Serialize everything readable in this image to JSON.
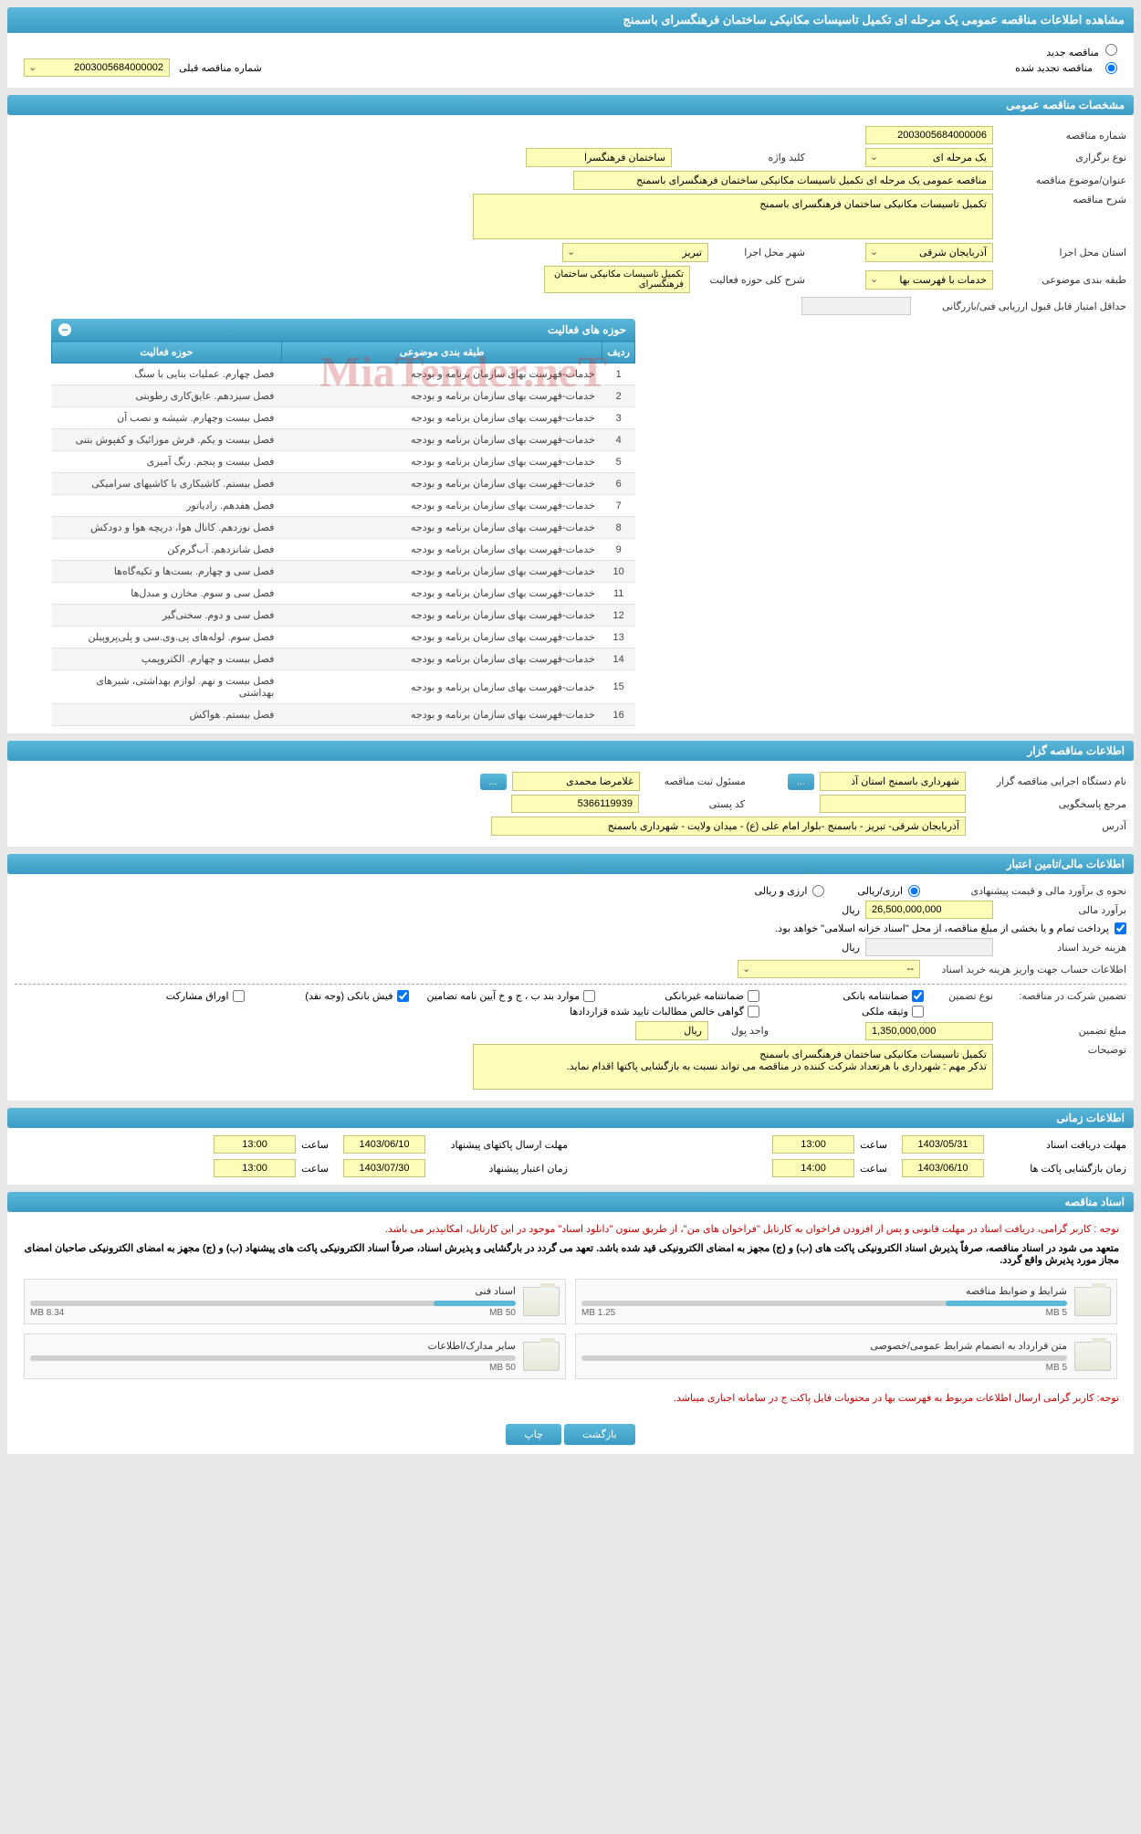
{
  "header": {
    "title": "مشاهده اطلاعات مناقصه عمومی یک مرحله ای تکمیل تاسیسات مکانیکی ساختمان فرهنگسرای باسمنج"
  },
  "top_radios": {
    "new_tender": "مناقصه جدید",
    "renewed_tender": "مناقصه تجدید شده",
    "prev_number_label": "شماره مناقصه قبلی",
    "prev_number": "2003005684000002"
  },
  "general_spec": {
    "section_title": "مشخصات مناقصه عمومی",
    "tender_number_label": "شماره مناقصه",
    "tender_number": "2003005684000006",
    "holding_type_label": "نوع برگزاری",
    "holding_type": "یک مرحله ای",
    "keyword_label": "کلید واژه",
    "keyword": "ساختمان فرهنگسرا",
    "subject_label": "عنوان/موضوع مناقصه",
    "subject": "مناقصه عمومی یک مرحله ای تکمیل تاسیسات مکانیکی ساختمان فرهنگسرای باسمنج",
    "description_label": "شرح مناقصه",
    "description": "تکمیل تاسیسات مکانیکی ساختمان فرهنگسرای باسمنج",
    "province_label": "استان محل اجرا",
    "province": "آذربایجان شرقی",
    "city_label": "شهر محل اجرا",
    "city": "تبریز",
    "category_label": "طبقه بندی موضوعی",
    "category": "خدمات با فهرست بها",
    "activity_scope_label": "شرح کلی حوزه فعالیت",
    "activity_scope": "تکمیل تاسیسات مکانیکی ساختمان فرهنگسرای",
    "min_score_label": "حداقل امتیاز قابل قبول ارزیابی فنی/بازرگانی"
  },
  "activity_table": {
    "title": "حوزه های فعالیت",
    "col_row": "ردیف",
    "col_category": "طبقه بندی موضوعی",
    "col_field": "حوزه فعالیت",
    "rows": [
      {
        "n": "1",
        "cat": "خدمات-فهرست بهای سازمان برنامه و بودجه",
        "field": "فصل چهارم. عملیات بنایی با سنگ"
      },
      {
        "n": "2",
        "cat": "خدمات-فهرست بهای سازمان برنامه و بودجه",
        "field": "فصل سیزدهم. عایق‌کاری رطوبتی"
      },
      {
        "n": "3",
        "cat": "خدمات-فهرست بهای سازمان برنامه و بودجه",
        "field": "فصل بیست وچهارم. شیشه و نصب آن"
      },
      {
        "n": "4",
        "cat": "خدمات-فهرست بهای سازمان برنامه و بودجه",
        "field": "فصل بیست و یکم. فرش موزائیک و کفپوش بتنی"
      },
      {
        "n": "5",
        "cat": "خدمات-فهرست بهای سازمان برنامه و بودجه",
        "field": "فصل بیست و پنجم. رنگ آمیزی"
      },
      {
        "n": "6",
        "cat": "خدمات-فهرست بهای سازمان برنامه و بودجه",
        "field": "فصل بیستم. کاشیکاری با کاشیهای سرامیکی"
      },
      {
        "n": "7",
        "cat": "خدمات-فهرست بهای سازمان برنامه و بودجه",
        "field": "فصل هفدهم. رادیاتور"
      },
      {
        "n": "8",
        "cat": "خدمات-فهرست بهای سازمان برنامه و بودجه",
        "field": "فصل نوزدهم. کانال هوا، دریچه هوا و دودکش"
      },
      {
        "n": "9",
        "cat": "خدمات-فهرست بهای سازمان برنامه و بودجه",
        "field": "فصل شانزدهم. آب‌گرم‌کن"
      },
      {
        "n": "10",
        "cat": "خدمات-فهرست بهای سازمان برنامه و بودجه",
        "field": "فصل سی و چهارم. بست‌ها و تکیه‌گاه‌ها"
      },
      {
        "n": "11",
        "cat": "خدمات-فهرست بهای سازمان برنامه و بودجه",
        "field": "فصل سی و سوم. مخازن و مبدل‌ها"
      },
      {
        "n": "12",
        "cat": "خدمات-فهرست بهای سازمان برنامه و بودجه",
        "field": "فصل سی و دوم. سختی‌گیر"
      },
      {
        "n": "13",
        "cat": "خدمات-فهرست بهای سازمان برنامه و بودجه",
        "field": "فصل سوم. لوله‌های پی.وی.سی و پلی‌پروپیلن"
      },
      {
        "n": "14",
        "cat": "خدمات-فهرست بهای سازمان برنامه و بودجه",
        "field": "فصل بیست و چهارم. الکتروپمپ"
      },
      {
        "n": "15",
        "cat": "خدمات-فهرست بهای سازمان برنامه و بودجه",
        "field": "فصل بیست و نهم. لوازم بهداشتی، شیرهای بهداشتی"
      },
      {
        "n": "16",
        "cat": "خدمات-فهرست بهای سازمان برنامه و بودجه",
        "field": "فصل بیستم. هواکش"
      }
    ]
  },
  "organizer": {
    "section_title": "اطلاعات مناقصه گزار",
    "org_label": "نام دستگاه اجرایی مناقصه گزار",
    "org_name": "شهرداری باسمنج استان آذ",
    "registrar_label": "مسئول ثبت مناقصه",
    "registrar": "غلامرضا محمدی",
    "ref_label": "مرجع پاسخگویی",
    "postal_label": "کد پستی",
    "postal": "5366119939",
    "address_label": "آدرس",
    "address": "آذربایجان شرقی- تبریز - باسمنج -بلوار امام علی (ع) - میدان ولایت - شهرداری باسمنج",
    "btn_more": "..."
  },
  "financial": {
    "section_title": "اطلاعات مالی/تامین اعتبار",
    "estimate_type_label": "نحوه ی برآورد مالی و قیمت پیشنهادی",
    "option_rial": "ارزی/ریالی",
    "option_currency": "ارزی و ریالی",
    "estimate_label": "برآورد مالی",
    "estimate_value": "26,500,000,000",
    "unit_rial": "ریال",
    "payment_note": "پرداخت تمام و یا بخشی از مبلغ مناقصه، از محل \"اسناد خزانه اسلامی\" خواهد بود.",
    "doc_cost_label": "هزینه خرید اسناد",
    "account_info_label": "اطلاعات حساب جهت واریز هزینه خرید اسناد",
    "account_placeholder": "--",
    "guarantee_label": "تضمین شرکت در مناقصه:",
    "guarantee_type_label": "نوع تضمین",
    "chk_bank": "ضمانتنامه بانکی",
    "chk_nonbank": "ضمانتنامه غیربانکی",
    "chk_items": "موارد بند ب ، ج و خ آیین نامه تضامین",
    "chk_cash": "فیش بانکی (وجه نقد)",
    "chk_securities": "اوراق مشارکت",
    "chk_property": "وثیقه ملکی",
    "chk_receivables": "گواهی خالص مطالبات تایید شده قراردادها",
    "guarantee_amount_label": "مبلغ تضمین",
    "guarantee_amount": "1,350,000,000",
    "unit_label": "واحد پول",
    "unit_value": "ریال",
    "notes_label": "توضیحات",
    "notes": "تکمیل تاسیسات مکانیکی ساختمان فرهنگسرای باسمنج\nتذکر مهم : شهرداری با هرتعداد شرکت کننده در مناقصه می تواند نسبت به بازگشایی پاکتها اقدام نماید."
  },
  "timing": {
    "section_title": "اطلاعات زمانی",
    "receive_label": "مهلت دریافت اسناد",
    "receive_date": "1403/05/31",
    "receive_time": "13:00",
    "send_label": "مهلت ارسال پاکتهای پیشنهاد",
    "send_date": "1403/06/10",
    "send_time": "13:00",
    "open_label": "زمان بازگشایی پاکت ها",
    "open_date": "1403/06/10",
    "open_time": "14:00",
    "validity_label": "زمان اعتبار پیشنهاد",
    "validity_date": "1403/07/30",
    "validity_time": "13:00",
    "time_label": "ساعت"
  },
  "documents": {
    "section_title": "اسناد مناقصه",
    "notice1": "توجه : کاربر گرامی، دریافت اسناد در مهلت قانونی و پس از افزودن فراخوان به کارتابل \"فراخوان های من\"، از طریق ستون \"دانلود اسناد\" موجود در این کارتابل، امکانپذیر می باشد.",
    "notice2": "متعهد می شود در اسناد مناقصه، صرفاً پذیرش اسناد الکترونیکی پاکت های (ب) و (ج) مجهز به امضای الکترونیکی قید شده باشد. تعهد می گردد در بارگشایی و پذیرش اسناد، صرفاً اسناد الکترونیکی پاکت های پیشنهاد (ب) و (ج) مجهز به امضای الکترونیکی صاحبان امضای مجاز مورد پذیرش واقع گردد.",
    "docs": [
      {
        "title": "شرایط و ضوابط مناقصه",
        "used": "1.25 MB",
        "total": "5 MB",
        "pct": 25
      },
      {
        "title": "اسناد فنی",
        "used": "8.34 MB",
        "total": "50 MB",
        "pct": 17
      },
      {
        "title": "متن قرارداد به انضمام شرایط عمومی/خصوصی",
        "used": "",
        "total": "5 MB",
        "pct": 0
      },
      {
        "title": "سایر مدارک/اطلاعات",
        "used": "",
        "total": "50 MB",
        "pct": 0
      }
    ],
    "notice3": "توجه: کاربر گرامی ارسال اطلاعات مربوط به فهرست بها در محتویات فایل پاکت ج در سامانه اجباری میباشد."
  },
  "buttons": {
    "back": "بازگشت",
    "print": "چاپ"
  },
  "colors": {
    "header_bg": "#3a9bc4",
    "field_bg": "#fefdb8"
  }
}
